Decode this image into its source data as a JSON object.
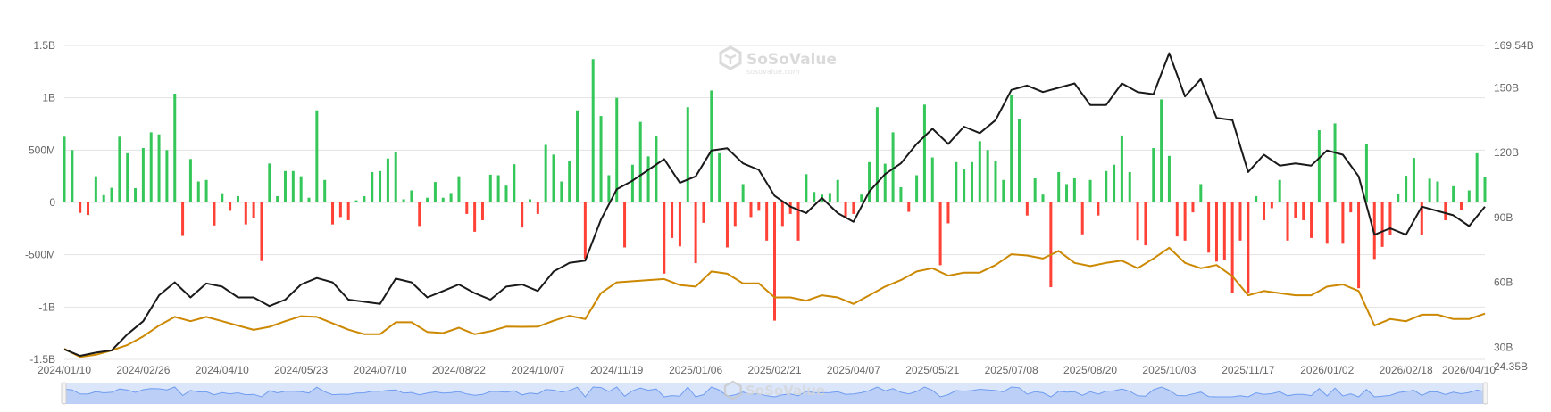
{
  "watermark": {
    "brand": "SoSoValue",
    "site": "sosovalue.com"
  },
  "chart_data": {
    "type": "bar+line",
    "colors": {
      "inflow": "#35c759",
      "outflow": "#ff4136",
      "line_black": "#1a1a1a",
      "line_orange": "#cc8800",
      "grid": "#e3e3e3",
      "navigator_fill": "#bcd0f7",
      "navigator_line": "#6f9cf0"
    },
    "x_tick_labels": [
      "2024/01/10",
      "2024/02/26",
      "2024/04/10",
      "2024/05/23",
      "2024/07/10",
      "2024/08/22",
      "2024/10/07",
      "2024/11/19",
      "2025/01/06",
      "2025/02/21",
      "2025/04/07",
      "2025/05/21",
      "2025/07/08",
      "2025/08/20",
      "2025/10/03",
      "2025/11/17",
      "2026/01/02",
      "2026/02/18",
      "2026/04/10"
    ],
    "left_axis": {
      "ticks": [
        1500000000,
        1000000000,
        500000000,
        0,
        -500000000,
        -1000000000,
        -1500000000
      ],
      "tick_labels": [
        "1.5B",
        "1B",
        "500M",
        "0",
        "-500M",
        "-1B",
        "-1.5B"
      ],
      "range": [
        -1500000000,
        1500000000
      ]
    },
    "right_axis": {
      "ticks": [
        169.54,
        150,
        120,
        90,
        60,
        30,
        24.35
      ],
      "tick_labels": [
        "169.54B",
        "150B",
        "120B",
        "90B",
        "60B",
        "30B",
        "24.35B"
      ],
      "range": [
        24.35,
        169.54
      ],
      "unit": "B"
    },
    "grid": true,
    "bars_millions": [
      628,
      500,
      -100,
      -120,
      250,
      70,
      140,
      628,
      470,
      136,
      520,
      670,
      650,
      500,
      1040,
      -320,
      415,
      200,
      215,
      -220,
      88,
      -80,
      60,
      -210,
      -150,
      -560,
      372,
      60,
      300,
      300,
      250,
      45,
      880,
      215,
      -210,
      -140,
      -170,
      20,
      60,
      290,
      300,
      420,
      485,
      30,
      115,
      -225,
      45,
      195,
      45,
      90,
      250,
      -110,
      -280,
      -170,
      265,
      260,
      160,
      365,
      -240,
      30,
      -110,
      550,
      457,
      200,
      400,
      880,
      -540,
      1370,
      826,
      260,
      1000,
      -430,
      360,
      770,
      440,
      630,
      -680,
      -340,
      -420,
      910,
      -580,
      -195,
      1070,
      470,
      -430,
      -225,
      175,
      -140,
      -80,
      -365,
      -1130,
      -225,
      -110,
      -365,
      270,
      100,
      75,
      90,
      215,
      -150,
      -110,
      75,
      385,
      910,
      370,
      670,
      145,
      -90,
      260,
      935,
      430,
      -600,
      -200,
      385,
      315,
      385,
      585,
      500,
      400,
      215,
      1025,
      800,
      -125,
      230,
      75,
      -810,
      290,
      175,
      230,
      -305,
      215,
      -125,
      300,
      360,
      640,
      290,
      -360,
      -410,
      520,
      985,
      445,
      -325,
      -365,
      -95,
      175,
      -480,
      -565,
      -550,
      -865,
      -365,
      -860,
      60,
      -170,
      -55,
      215,
      -365,
      -150,
      -170,
      -340,
      690,
      -395,
      755,
      -395,
      -95,
      -820,
      555,
      -540,
      -425,
      -310,
      85,
      255,
      425,
      -310,
      227,
      200,
      -170,
      155,
      -70,
      115,
      470,
      240
    ],
    "series_black_B": [
      29,
      26,
      27.5,
      28.5,
      36,
      42,
      54,
      60,
      53,
      59.5,
      58,
      53,
      53,
      49,
      52,
      59,
      62,
      60,
      52,
      51,
      50,
      61.7,
      60,
      53,
      56,
      59,
      55,
      52,
      58,
      59,
      56,
      65,
      69,
      70,
      89,
      103,
      107,
      112,
      117,
      106,
      109,
      121,
      122,
      115,
      112,
      100,
      95,
      92,
      99,
      92,
      88,
      102,
      110,
      115,
      124,
      131,
      124,
      132,
      129,
      135,
      149,
      151,
      148,
      150,
      152,
      142,
      142,
      152,
      148,
      147,
      166,
      146,
      154,
      136,
      135,
      111,
      119,
      114,
      115,
      114,
      121,
      119,
      109,
      82,
      85,
      82,
      95,
      93,
      91,
      86,
      95
    ],
    "series_orange_B": [
      29.2,
      25.5,
      26.5,
      28.5,
      31,
      35,
      40,
      44,
      42,
      44,
      42,
      40,
      38,
      39.4,
      42,
      44.3,
      44,
      41,
      38.1,
      36,
      36,
      41.5,
      41.5,
      37,
      36.5,
      39,
      36,
      37.4,
      39.5,
      39.4,
      39.5,
      42.2,
      44.5,
      43,
      55,
      60,
      60.5,
      61,
      61.5,
      58.7,
      58,
      65,
      64,
      59.5,
      59.5,
      53,
      53,
      51.5,
      54,
      53,
      50,
      54,
      58,
      61,
      65,
      66.5,
      63.1,
      64.5,
      64.5,
      68,
      73,
      72.4,
      71,
      74.5,
      69,
      67.5,
      69,
      70,
      66.5,
      71,
      76,
      69,
      66.5,
      68,
      62.8,
      54,
      56,
      55,
      54,
      54,
      58,
      59,
      56,
      40,
      43,
      42,
      45,
      45,
      43,
      43,
      45.5
    ]
  }
}
